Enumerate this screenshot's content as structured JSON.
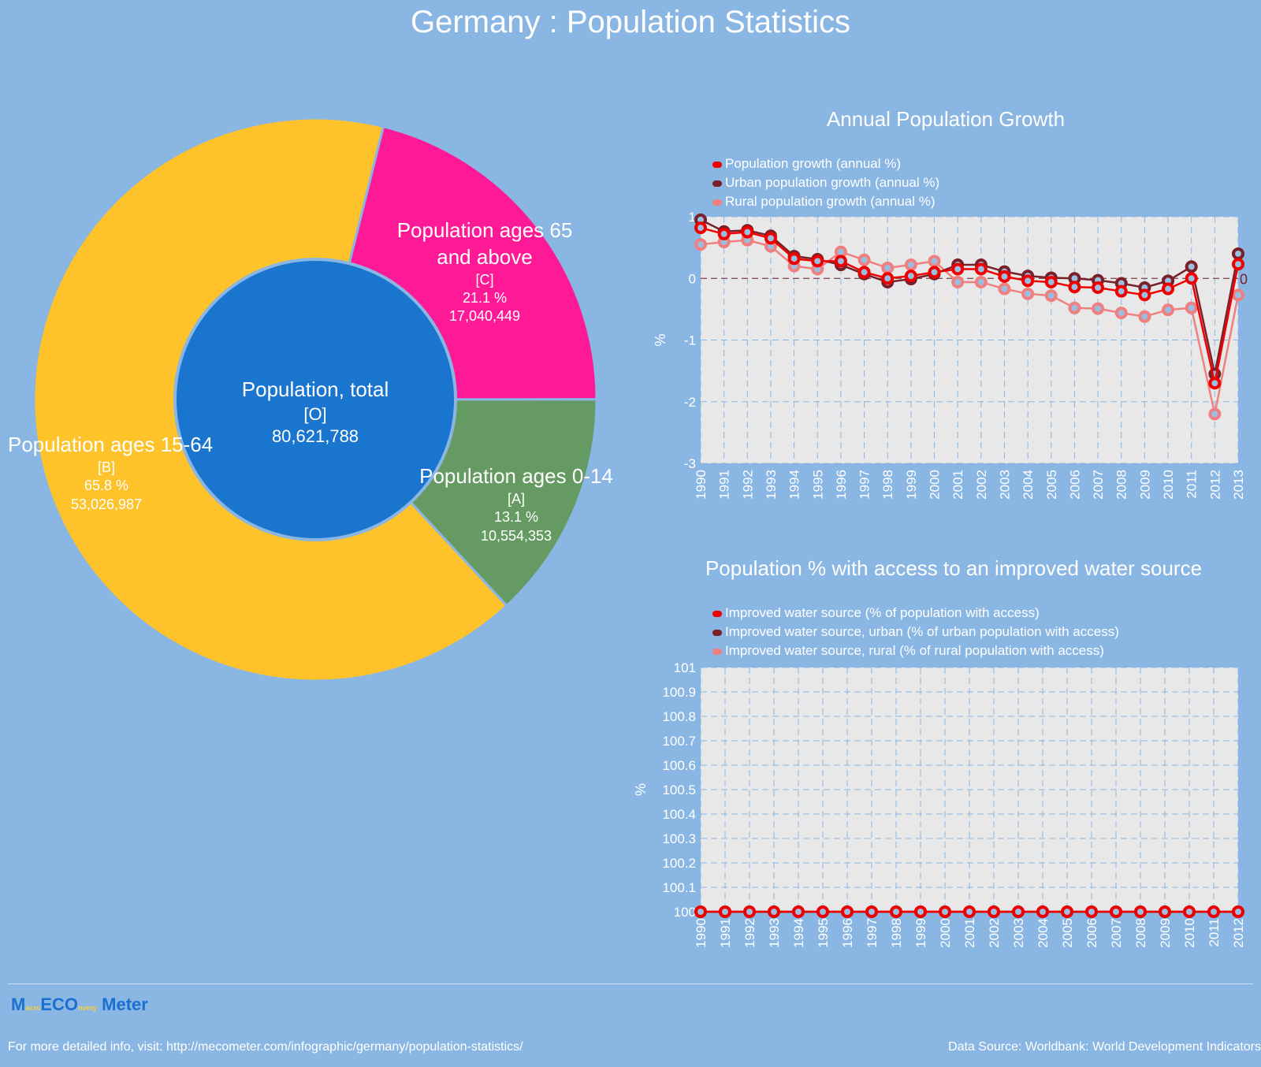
{
  "title": "Germany : Population Statistics",
  "colors": {
    "background": "#8ab6e3",
    "plot_bg": "#e8e8e8"
  },
  "chart_data": [
    {
      "type": "pie",
      "variant": "donut",
      "center": {
        "label": "Population, total",
        "code": "[O]",
        "value": "80,621,788",
        "color": "#1a75cf"
      },
      "slices": [
        {
          "name": "Population ages 65 and above",
          "code": "[C]",
          "percent": 21.1,
          "value": "17,040,449",
          "pct_label": "21.1 %",
          "color": "#fe1a96"
        },
        {
          "name": "Population ages 0-14",
          "code": "[A]",
          "percent": 13.1,
          "value": "10,554,353",
          "pct_label": "13.1 %",
          "color": "#659b62"
        },
        {
          "name": "Population ages 15-64",
          "code": "[B]",
          "percent": 65.8,
          "value": "53,026,987",
          "pct_label": "65.8 %",
          "color": "#fec22b"
        }
      ]
    },
    {
      "type": "line",
      "title": "Annual Population Growth",
      "ylabel": "%",
      "ylim": [
        -3,
        1
      ],
      "yticks": [
        "1",
        "0",
        "-1",
        "-2",
        "-3"
      ],
      "grid": true,
      "legend": "top-left",
      "annotation": "0",
      "x": [
        "1990",
        "1991",
        "1992",
        "1993",
        "1994",
        "1995",
        "1996",
        "1997",
        "1998",
        "1999",
        "2000",
        "2001",
        "2002",
        "2003",
        "2004",
        "2005",
        "2006",
        "2007",
        "2008",
        "2009",
        "2010",
        "2011",
        "2012",
        "2013"
      ],
      "series": [
        {
          "name": "Population growth (annual %)",
          "color": "#ee0000",
          "values": [
            0.82,
            0.72,
            0.75,
            0.65,
            0.32,
            0.28,
            0.28,
            0.1,
            0.0,
            0.04,
            0.1,
            0.15,
            0.15,
            0.03,
            -0.04,
            -0.06,
            -0.14,
            -0.15,
            -0.21,
            -0.27,
            -0.17,
            0.0,
            -1.7,
            0.23
          ]
        },
        {
          "name": "Urban population growth (annual %)",
          "color": "#7a2028",
          "values": [
            0.95,
            0.76,
            0.78,
            0.69,
            0.36,
            0.31,
            0.22,
            0.07,
            -0.06,
            -0.01,
            0.07,
            0.22,
            0.22,
            0.11,
            0.04,
            0.01,
            0.0,
            -0.03,
            -0.08,
            -0.15,
            -0.04,
            0.19,
            -1.55,
            0.4
          ]
        },
        {
          "name": "Rural population growth (annual %)",
          "color": "#f08080",
          "values": [
            0.55,
            0.59,
            0.62,
            0.52,
            0.2,
            0.15,
            0.43,
            0.3,
            0.17,
            0.22,
            0.28,
            -0.06,
            -0.06,
            -0.17,
            -0.25,
            -0.28,
            -0.48,
            -0.49,
            -0.56,
            -0.62,
            -0.51,
            -0.48,
            -2.2,
            -0.27
          ]
        }
      ]
    },
    {
      "type": "line",
      "title": "Population % with access to an improved water source",
      "ylabel": "%",
      "ylim": [
        100,
        101
      ],
      "yticks": [
        "101",
        "100.9",
        "100.8",
        "100.7",
        "100.6",
        "100.5",
        "100.4",
        "100.3",
        "100.2",
        "100.1",
        "100"
      ],
      "grid": true,
      "legend": "top-left",
      "x": [
        "1990",
        "1991",
        "1992",
        "1993",
        "1994",
        "1995",
        "1996",
        "1997",
        "1998",
        "1999",
        "2000",
        "2001",
        "2002",
        "2003",
        "2004",
        "2005",
        "2006",
        "2007",
        "2008",
        "2009",
        "2010",
        "2011",
        "2012"
      ],
      "series": [
        {
          "name": "Improved water source (% of population with access)",
          "color": "#ee0000",
          "values": [
            100,
            100,
            100,
            100,
            100,
            100,
            100,
            100,
            100,
            100,
            100,
            100,
            100,
            100,
            100,
            100,
            100,
            100,
            100,
            100,
            100,
            100,
            100
          ]
        },
        {
          "name": "Improved water source, urban (% of urban population with access)",
          "color": "#7a2028",
          "values": [
            100,
            100,
            100,
            100,
            100,
            100,
            100,
            100,
            100,
            100,
            100,
            100,
            100,
            100,
            100,
            100,
            100,
            100,
            100,
            100,
            100,
            100,
            100
          ]
        },
        {
          "name": "Improved water source, rural (% of rural population with access)",
          "color": "#f08080",
          "values": [
            100,
            100,
            100,
            100,
            100,
            100,
            100,
            100,
            100,
            100,
            100,
            100,
            100,
            100,
            100,
            100,
            100,
            100,
            100,
            100,
            100,
            100,
            100
          ]
        }
      ]
    }
  ],
  "footer": {
    "logo": "MacroECOnomy Meter",
    "visit": "For more detailed info, visit: http://mecometer.com/infographic/germany/population-statistics/",
    "source": "Data Source: Worldbank: World Development Indicators"
  }
}
